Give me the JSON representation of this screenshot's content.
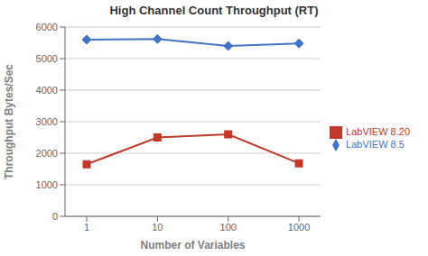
{
  "chart_data": {
    "type": "line",
    "title": "High Channel Count Throughput (RT)",
    "x_label": "Number of Variables",
    "y_label": "Throughput Bytes/Sec",
    "categories": [
      "1",
      "10",
      "100",
      "1000"
    ],
    "series": [
      {
        "name": "LabVIEW 8.5",
        "color": "#4472C4",
        "marker": "diamond",
        "values": [
          5600,
          5620,
          5400,
          5480
        ]
      },
      {
        "name": "LabVIEW 8.20",
        "color": "#C0392B",
        "marker": "square",
        "values": [
          1650,
          2500,
          2600,
          1680
        ]
      }
    ],
    "ylim": [
      0,
      6000
    ],
    "yticks": [
      0,
      1000,
      2000,
      3000,
      4000,
      5000,
      6000
    ],
    "grid": true,
    "legend": "right"
  }
}
